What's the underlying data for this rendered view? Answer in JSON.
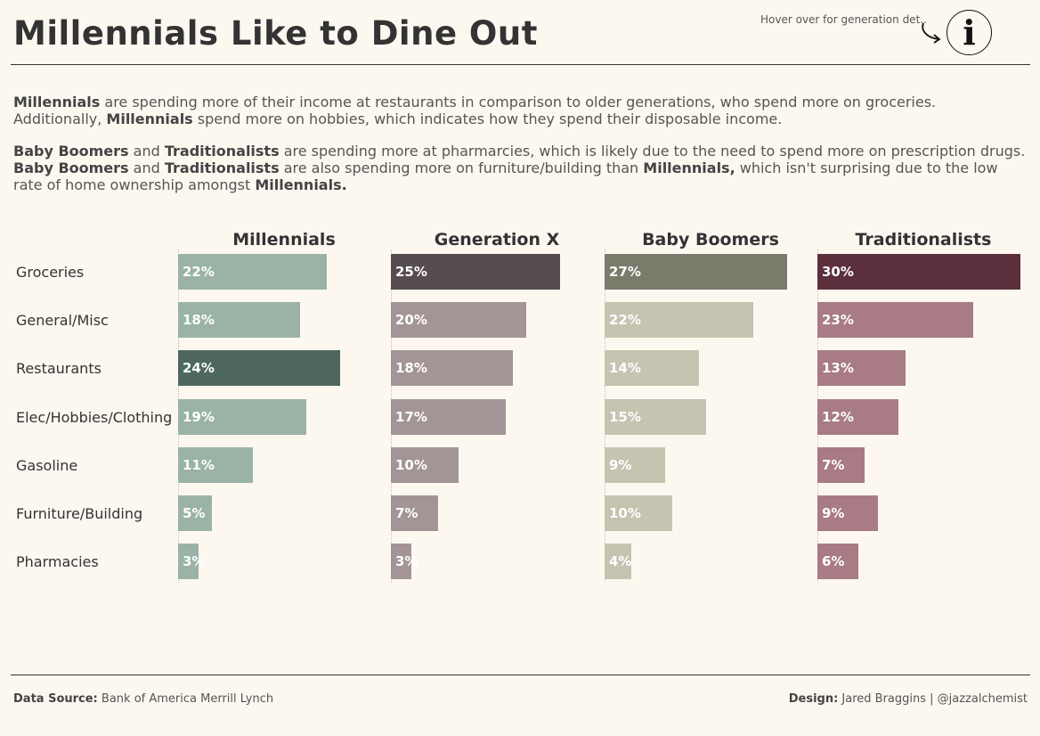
{
  "header": {
    "title": "Millennials Like to Dine Out",
    "hover_hint": "Hover over for generation det..",
    "info_glyph": "i"
  },
  "intro": {
    "p1": [
      {
        "text": "Millennials",
        "bold": true
      },
      {
        "text": " are spending more of their income at restaurants in comparison to older generations, who spend more on groceries. Additionally, ",
        "bold": false
      },
      {
        "text": "Millennials",
        "bold": true
      },
      {
        "text": " spend more on hobbies, which indicates how they spend their disposable income.",
        "bold": false
      }
    ],
    "p2": [
      {
        "text": "Baby Boomers",
        "bold": true
      },
      {
        "text": " and ",
        "bold": false
      },
      {
        "text": "Traditionalists",
        "bold": true
      },
      {
        "text": " are spending more at pharmarcies, which is likely due to the need to spend more on prescription drugs. ",
        "bold": false
      },
      {
        "text": "Baby Boomers",
        "bold": true
      },
      {
        "text": " and ",
        "bold": false
      },
      {
        "text": "Traditionalists",
        "bold": true
      },
      {
        "text": " are also spending more on furniture/building than ",
        "bold": false
      },
      {
        "text": "Millennials,",
        "bold": true
      },
      {
        "text": " which isn't surprising due to the low rate of home ownership amongst ",
        "bold": false
      },
      {
        "text": "Millennials.",
        "bold": true
      }
    ]
  },
  "chart_data": {
    "type": "bar",
    "orientation": "horizontal",
    "layout": "small-multiples",
    "categories": [
      "Groceries",
      "General/Misc",
      "Restaurants",
      "Elec/Hobbies/Clothing",
      "Gasoline",
      "Furniture/Building",
      "Pharmacies"
    ],
    "unit": "%",
    "series": [
      {
        "name": "Millennials",
        "values": [
          22,
          18,
          24,
          19,
          11,
          5,
          3
        ],
        "color": "#9ab3a6",
        "highlight_color": "#4e685f",
        "highlight_index": 2
      },
      {
        "name": "Generation X",
        "values": [
          25,
          20,
          18,
          17,
          10,
          7,
          3
        ],
        "color": "#a39596",
        "highlight_color": "#574c51",
        "highlight_index": 0
      },
      {
        "name": "Baby Boomers",
        "values": [
          27,
          22,
          14,
          15,
          9,
          10,
          4
        ],
        "color": "#c6c3b0",
        "highlight_color": "#7a7b6b",
        "highlight_index": 0
      },
      {
        "name": "Traditionalists",
        "values": [
          30,
          23,
          13,
          12,
          7,
          9,
          6
        ],
        "color": "#a87b85",
        "highlight_color": "#5c2f3c",
        "highlight_index": 0
      }
    ],
    "xlim": [
      0,
      30
    ],
    "grid": false,
    "legend": "none"
  },
  "footer": {
    "source_label": "Data Source:",
    "source_value": "Bank of America Merrill Lynch",
    "design_label": "Design:",
    "design_value": "Jared Braggins | @jazzalchemist"
  },
  "colors": {
    "background": "#fcf8f0",
    "text": "#333333"
  }
}
